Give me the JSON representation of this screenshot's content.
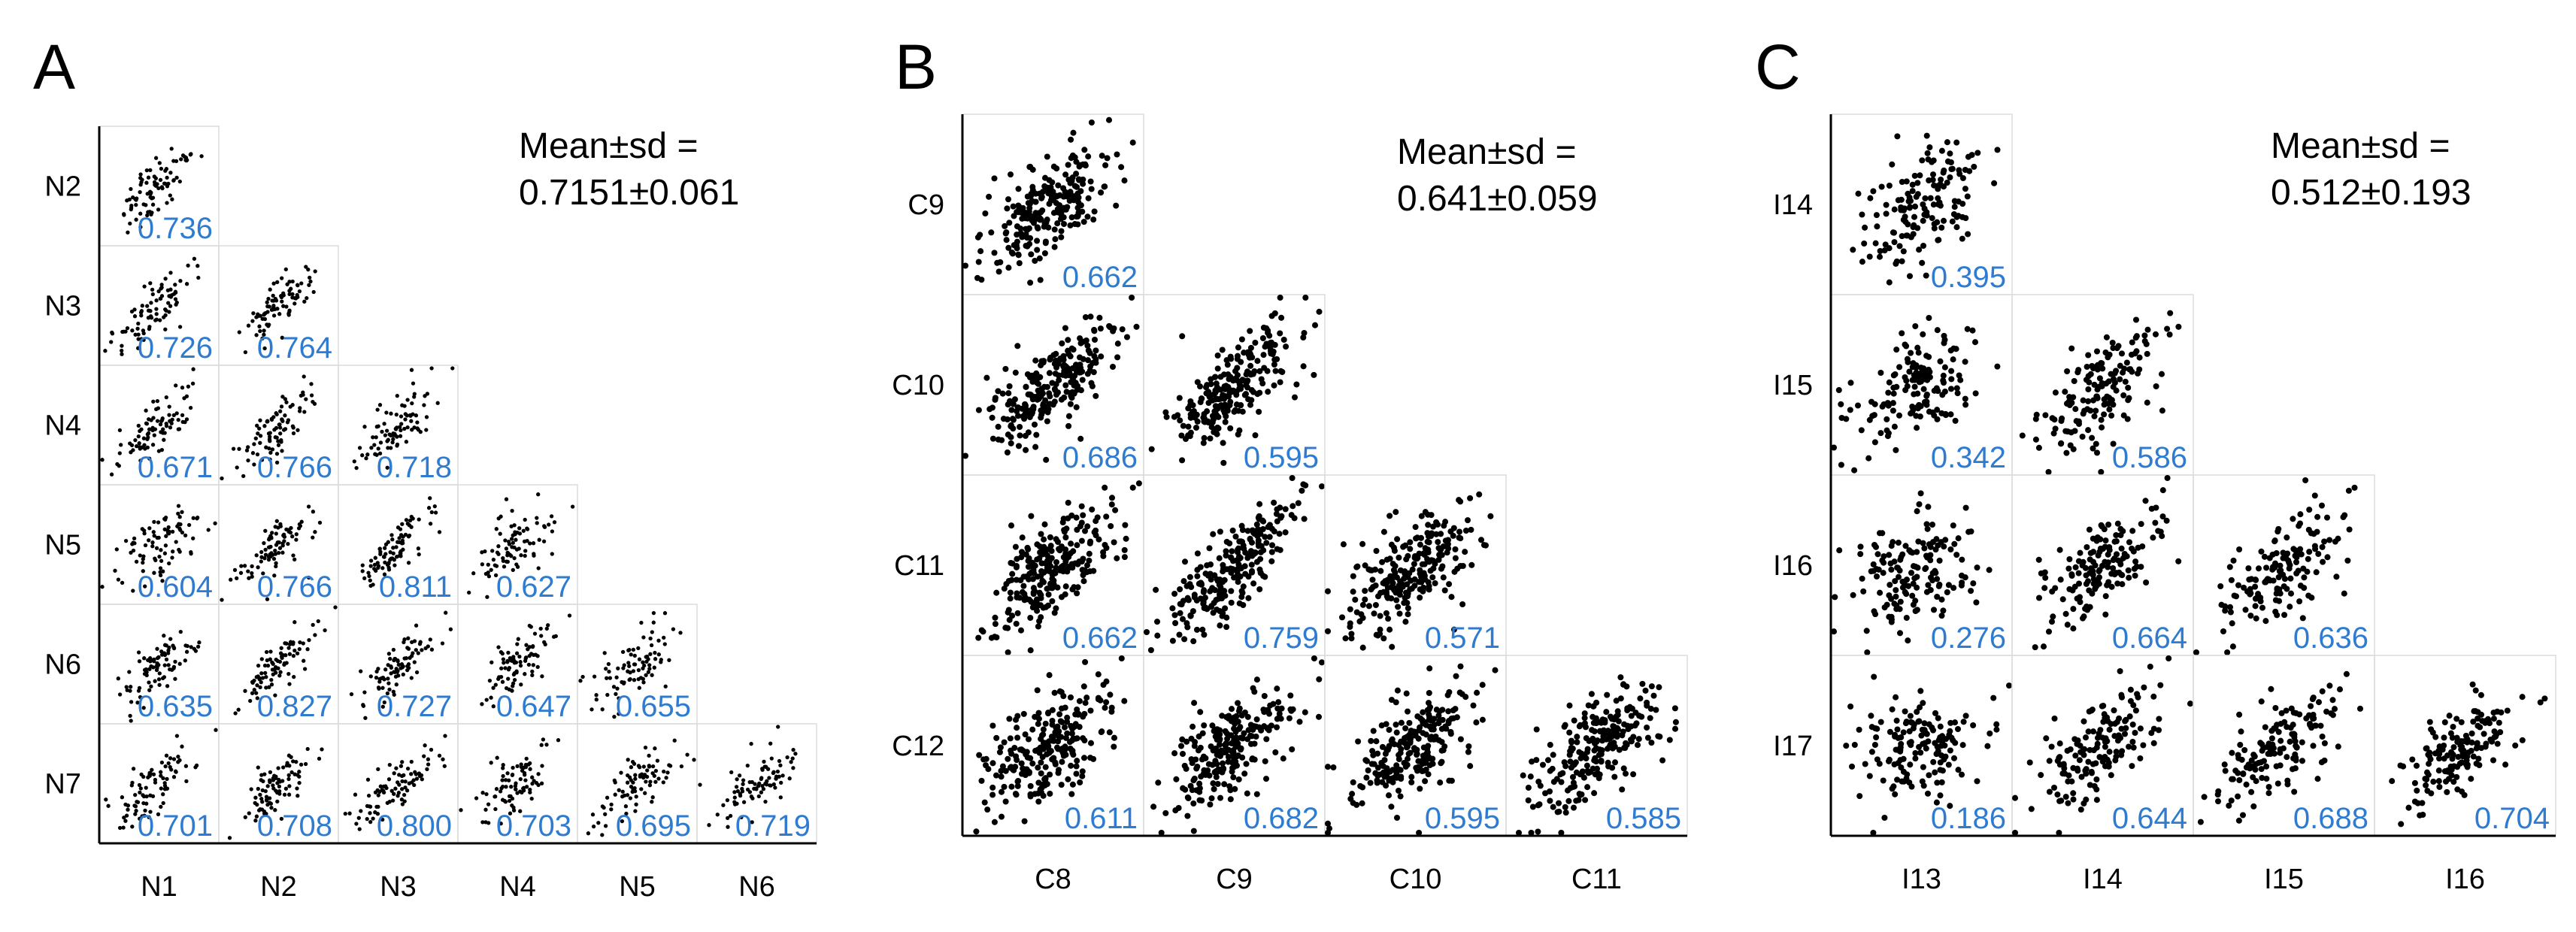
{
  "colors": {
    "dot": "#000000",
    "corr_text": "#2f7bd0",
    "axis": "#000000",
    "cell_border": "#dcdcdc"
  },
  "chart_data": [
    {
      "type": "scatter",
      "title": "A",
      "stat_label": "Mean±sd =",
      "stat_value": "0.7151±0.061",
      "x_labels": [
        "N1",
        "N2",
        "N3",
        "N4",
        "N5",
        "N6"
      ],
      "y_labels": [
        "N2",
        "N3",
        "N4",
        "N5",
        "N6",
        "N7"
      ],
      "correlations": [
        [
          "0.736"
        ],
        [
          "0.726",
          "0.764"
        ],
        [
          "0.671",
          "0.766",
          "0.718"
        ],
        [
          "0.604",
          "0.766",
          "0.811",
          "0.627"
        ],
        [
          "0.635",
          "0.827",
          "0.727",
          "0.647",
          "0.655"
        ],
        [
          "0.701",
          "0.708",
          "0.800",
          "0.703",
          "0.695",
          "0.719"
        ]
      ],
      "points_per_cell": 85
    },
    {
      "type": "scatter",
      "title": "B",
      "stat_label": "Mean±sd =",
      "stat_value": "0.641±0.059",
      "x_labels": [
        "C8",
        "C9",
        "C10",
        "C11"
      ],
      "y_labels": [
        "C9",
        "C10",
        "C11",
        "C12"
      ],
      "correlations": [
        [
          "0.662"
        ],
        [
          "0.686",
          "0.595"
        ],
        [
          "0.662",
          "0.759",
          "0.571"
        ],
        [
          "0.611",
          "0.682",
          "0.595",
          "0.585"
        ]
      ],
      "points_per_cell": 240
    },
    {
      "type": "scatter",
      "title": "C",
      "stat_label": "Mean±sd =",
      "stat_value": "0.512±0.193",
      "x_labels": [
        "I13",
        "I14",
        "I15",
        "I16"
      ],
      "y_labels": [
        "I14",
        "I15",
        "I16",
        "I17"
      ],
      "correlations": [
        [
          "0.395"
        ],
        [
          "0.342",
          "0.586"
        ],
        [
          "0.276",
          "0.664",
          "0.636"
        ],
        [
          "0.186",
          "0.644",
          "0.688",
          "0.704"
        ]
      ],
      "points_per_cell": 150
    }
  ]
}
